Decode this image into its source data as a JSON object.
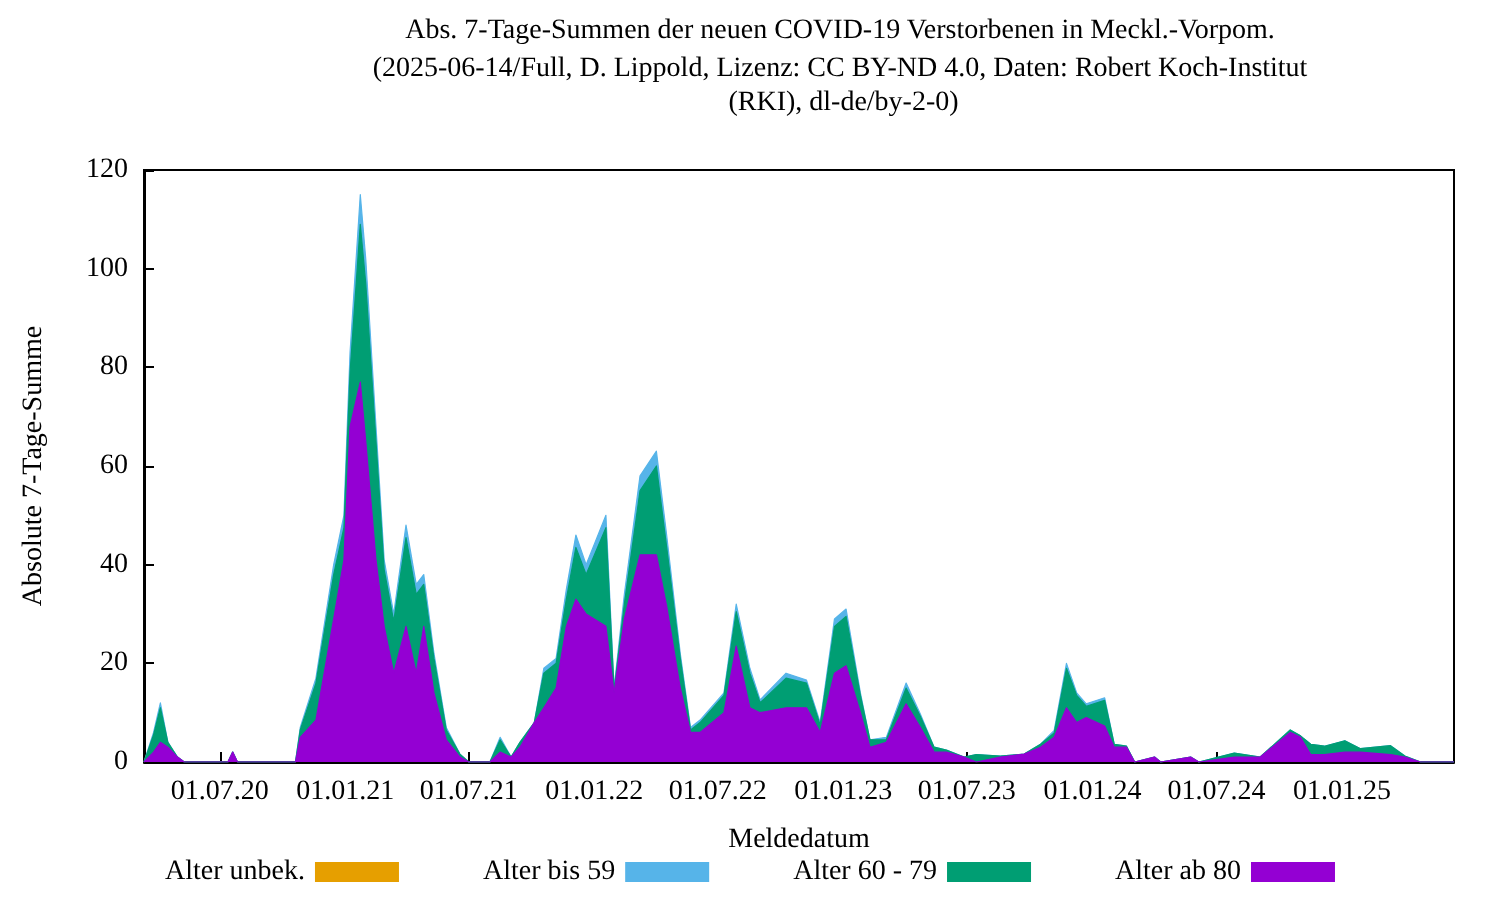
{
  "chart_data": {
    "type": "area",
    "stacked": true,
    "title": "Abs. 7-Tage-Summen der neuen COVID-19 Verstorbenen in Meckl.-Vorpom.",
    "subtitle": "(2025-06-14/Full, D. Lippold, Lizenz: CC BY-ND 4.0, Daten: Robert Koch-Institut (RKI), dl-de/by-2-0)",
    "xlabel": "Meldedatum",
    "ylabel": "Absolute 7-Tage-Summe",
    "legend": "bottom",
    "grid": false,
    "xlim": [
      "2020-03-12",
      "2025-06-14"
    ],
    "xticks": [
      {
        "value": "2020-07-01",
        "label": "01.07.20"
      },
      {
        "value": "2021-01-01",
        "label": "01.01.21"
      },
      {
        "value": "2021-07-01",
        "label": "01.07.21"
      },
      {
        "value": "2022-01-01",
        "label": "01.01.22"
      },
      {
        "value": "2022-07-01",
        "label": "01.07.22"
      },
      {
        "value": "2023-01-01",
        "label": "01.01.23"
      },
      {
        "value": "2023-07-01",
        "label": "01.07.23"
      },
      {
        "value": "2024-01-01",
        "label": "01.01.24"
      },
      {
        "value": "2024-07-01",
        "label": "01.07.24"
      },
      {
        "value": "2025-01-01",
        "label": "01.01.25"
      }
    ],
    "ylim": [
      0,
      120
    ],
    "yticks": [
      0,
      20,
      40,
      60,
      80,
      100,
      120
    ],
    "x": [
      "2020-03-12",
      "2020-03-26",
      "2020-04-05",
      "2020-04-16",
      "2020-04-30",
      "2020-05-10",
      "2020-07-13",
      "2020-07-20",
      "2020-07-27",
      "2020-10-20",
      "2020-10-27",
      "2020-11-19",
      "2020-12-15",
      "2020-12-30",
      "2021-01-08",
      "2021-01-23",
      "2021-01-31",
      "2021-02-15",
      "2021-02-27",
      "2021-03-13",
      "2021-03-31",
      "2021-04-15",
      "2021-04-26",
      "2021-05-11",
      "2021-05-29",
      "2021-06-18",
      "2021-07-01",
      "2021-08-01",
      "2021-08-16",
      "2021-09-01",
      "2021-09-14",
      "2021-10-05",
      "2021-10-19",
      "2021-11-06",
      "2021-11-21",
      "2021-12-05",
      "2021-12-20",
      "2022-01-18",
      "2022-01-30",
      "2022-02-14",
      "2022-03-09",
      "2022-04-02",
      "2022-04-17",
      "2022-05-07",
      "2022-05-22",
      "2022-06-05",
      "2022-07-10",
      "2022-07-28",
      "2022-08-17",
      "2022-09-01",
      "2022-10-09",
      "2022-11-08",
      "2022-11-28",
      "2022-12-19",
      "2023-01-05",
      "2023-01-26",
      "2023-02-09",
      "2023-03-05",
      "2023-04-03",
      "2023-04-24",
      "2023-05-14",
      "2023-06-01",
      "2023-06-27",
      "2023-07-15",
      "2023-08-19",
      "2023-09-23",
      "2023-10-17",
      "2023-11-06",
      "2023-11-24",
      "2023-12-09",
      "2023-12-23",
      "2024-01-19",
      "2024-02-02",
      "2024-02-20",
      "2024-03-03",
      "2024-04-01",
      "2024-04-10",
      "2024-05-24",
      "2024-06-05",
      "2024-07-27",
      "2024-09-03",
      "2024-10-17",
      "2024-11-01",
      "2024-11-16",
      "2024-12-06",
      "2025-01-05",
      "2025-01-28",
      "2025-03-13",
      "2025-04-03",
      "2025-04-26",
      "2025-06-14"
    ],
    "series": [
      {
        "name": "Alter ab 80",
        "color": "#9400d3",
        "values": [
          0,
          2,
          4,
          3,
          1,
          0,
          0,
          2,
          0,
          0,
          5,
          8.5,
          29,
          41,
          68,
          77,
          65,
          41,
          27.5,
          18,
          27.5,
          18,
          27.5,
          14,
          4.5,
          1,
          0,
          0,
          2,
          1,
          3,
          8,
          11,
          15,
          27.5,
          33,
          30,
          27.5,
          14,
          29,
          42,
          42,
          31.6,
          15,
          6,
          6,
          10,
          23.5,
          11,
          10,
          11,
          11,
          6,
          18,
          19.5,
          10,
          3,
          4,
          11.8,
          7,
          2,
          2,
          1,
          0,
          1,
          1.6,
          3,
          5,
          11,
          8,
          9,
          7.3,
          3,
          3,
          0,
          1,
          0,
          1,
          0,
          1,
          1,
          6,
          5,
          1.5,
          1.5,
          2,
          2,
          1.5,
          1,
          0,
          0
        ]
      },
      {
        "name": "Alter 60 - 79",
        "color": "#009e73",
        "values": [
          0,
          3.5,
          7,
          1,
          0,
          0,
          0,
          0,
          0,
          0,
          1.5,
          7.5,
          9,
          6.5,
          11,
          32,
          32,
          24,
          11.5,
          10.5,
          18,
          16,
          8.5,
          7,
          2,
          0.6,
          0,
          0,
          2.5,
          0,
          1,
          0,
          7,
          5,
          5.5,
          10.5,
          8,
          20,
          0.5,
          3,
          13,
          18,
          12,
          6,
          0.5,
          2,
          3.5,
          7,
          7,
          2,
          6,
          5,
          1.5,
          9.5,
          10,
          3.5,
          1.5,
          0.5,
          3.2,
          2.2,
          1,
          0.4,
          0,
          1.5,
          0.2,
          0,
          0.6,
          0.9,
          8,
          5.5,
          2.3,
          5.2,
          0.6,
          0.2,
          0,
          0,
          0,
          0,
          0,
          0.8,
          0,
          0.5,
          0.3,
          2.1,
          1.7,
          2.3,
          0.7,
          1.8,
          0.2,
          0,
          0
        ]
      },
      {
        "name": "Alter bis 59",
        "color": "#56b4e9",
        "values": [
          0,
          0.5,
          1,
          0,
          0,
          0,
          0,
          0,
          0,
          0,
          0.5,
          1,
          2,
          2.5,
          4,
          6,
          5,
          3,
          2,
          1.5,
          2.5,
          2,
          2,
          1,
          0.5,
          0,
          0,
          0,
          0.5,
          0,
          0,
          0,
          1,
          1,
          2,
          2.5,
          2,
          2.5,
          0.5,
          2,
          3,
          3,
          2.4,
          1,
          0.5,
          0.5,
          0.5,
          1.5,
          1,
          0.6,
          1,
          0.6,
          0.5,
          1.5,
          1.5,
          0.5,
          0,
          0.5,
          1,
          0.5,
          0,
          0,
          0,
          0,
          0,
          0,
          0,
          0.5,
          1,
          0.5,
          0.5,
          0.5,
          0,
          0,
          0,
          0,
          0,
          0,
          0,
          0,
          0,
          0,
          0,
          0,
          0,
          0,
          0,
          0,
          0,
          0,
          0
        ]
      },
      {
        "name": "Alter unbek.",
        "color": "#e69f00",
        "values": [
          null,
          null,
          null,
          null,
          null,
          null,
          null,
          null,
          null,
          null,
          null,
          null,
          null,
          null,
          null,
          null,
          null,
          null,
          null,
          null,
          null,
          null,
          null,
          null,
          null,
          null,
          null,
          null,
          null,
          null,
          null,
          null,
          null,
          null,
          null,
          null,
          null,
          null,
          null,
          null,
          null,
          null,
          null,
          null,
          null,
          null,
          null,
          null,
          null,
          null,
          null,
          null,
          null,
          null,
          null,
          null,
          null,
          null,
          null,
          null,
          null,
          null,
          null,
          null,
          null,
          null,
          null,
          null,
          null,
          null,
          null,
          null,
          null,
          null,
          null,
          null,
          null,
          null,
          null,
          null,
          null,
          null,
          null,
          null,
          null,
          null,
          null,
          null,
          null,
          null,
          null
        ]
      }
    ]
  }
}
